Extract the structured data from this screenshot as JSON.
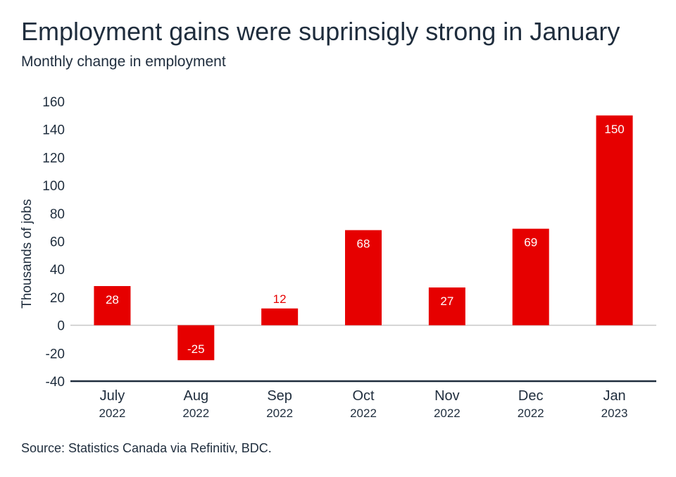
{
  "title": "Employment gains were suprinsigly strong in January",
  "subtitle": "Monthly change in employment",
  "source": "Source: Statistics Canada via Refinitiv, BDC.",
  "colors": {
    "bar": "#e60000",
    "axis": "#1f2d3d",
    "zero_line": "#c8c8c8",
    "label_inside": "#ffffff",
    "label_outside": "#e60000"
  },
  "chart_data": {
    "type": "bar",
    "categories": [
      "July",
      "Aug",
      "Sep",
      "Oct",
      "Nov",
      "Dec",
      "Jan"
    ],
    "category_years": [
      "2022",
      "2022",
      "2022",
      "2022",
      "2022",
      "2022",
      "2023"
    ],
    "values": [
      28,
      -25,
      12,
      68,
      27,
      69,
      150
    ],
    "data_labels": [
      "28",
      "-25",
      "12",
      "68",
      "27",
      "69",
      "150"
    ],
    "ylabel": "Thousands of jobs",
    "xlabel": "",
    "ylim": [
      -40,
      160
    ],
    "yticks": [
      -40,
      -20,
      0,
      20,
      40,
      60,
      80,
      100,
      120,
      140,
      160
    ],
    "grid": false,
    "legend": "none"
  }
}
